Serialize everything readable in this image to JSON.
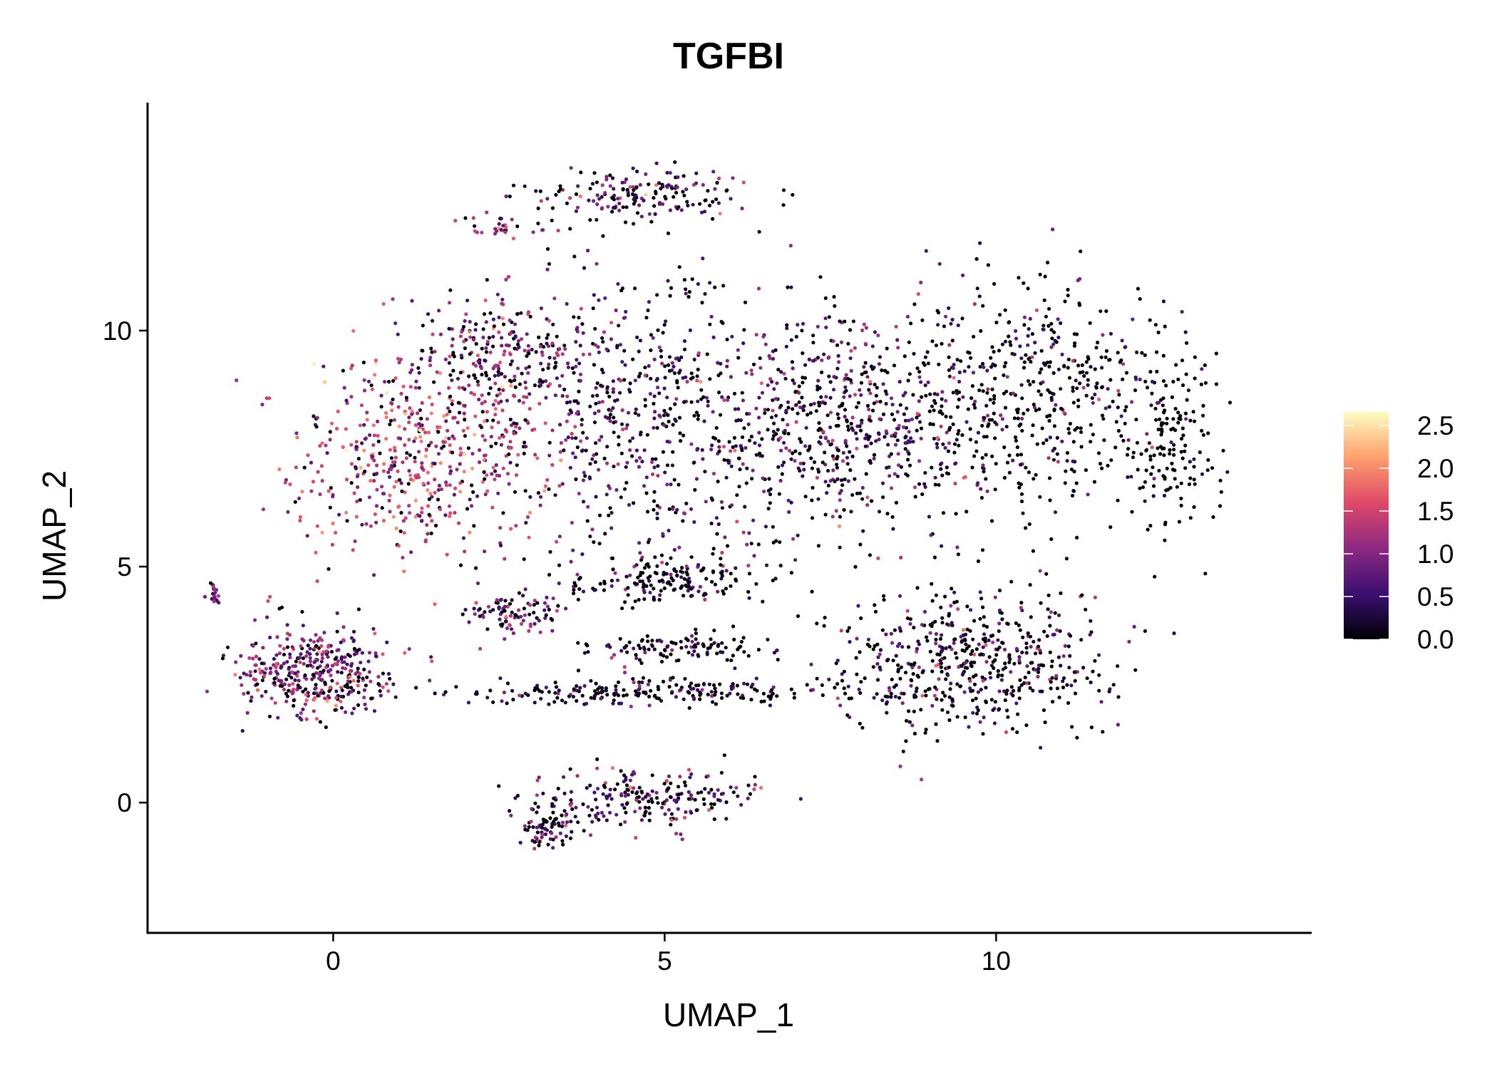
{
  "chart_data": {
    "type": "scatter",
    "title": "TGFBI",
    "xlabel": "UMAP_1",
    "ylabel": "UMAP_2",
    "xlim": [
      -2.8,
      14.76
    ],
    "ylim": [
      -2.76,
      14.83
    ],
    "x_ticks": [
      0,
      5,
      10
    ],
    "y_ticks": [
      0,
      5,
      10
    ],
    "grid": false,
    "legend": {
      "position": "right",
      "title": "",
      "ticks": [
        "0.0",
        "0.5",
        "1.0",
        "1.5",
        "2.0",
        "2.5"
      ],
      "range": [
        0,
        2.66
      ],
      "colormap": [
        "#000004",
        "#3b0f70",
        "#8c2981",
        "#de4968",
        "#fe9f6d",
        "#fcfdbf"
      ]
    },
    "point_clusters": [
      {
        "cx": 1.3,
        "cy": 7.3,
        "sx": 1.2,
        "sy": 1.4,
        "n": 520,
        "zero_frac": 0.15,
        "mean_expr": 1.35
      },
      {
        "cx": 2.5,
        "cy": 9.6,
        "sx": 0.8,
        "sy": 0.8,
        "n": 220,
        "zero_frac": 0.25,
        "mean_expr": 0.9
      },
      {
        "cx": 4.6,
        "cy": 12.9,
        "sx": 1.1,
        "sy": 0.35,
        "n": 170,
        "zero_frac": 0.35,
        "mean_expr": 0.7
      },
      {
        "cx": 2.6,
        "cy": 12.2,
        "sx": 0.4,
        "sy": 0.15,
        "n": 30,
        "zero_frac": 0.1,
        "mean_expr": 1.1
      },
      {
        "cx": 4.6,
        "cy": 8.2,
        "sx": 1.5,
        "sy": 2.0,
        "n": 560,
        "zero_frac": 0.35,
        "mean_expr": 0.65
      },
      {
        "cx": 7.6,
        "cy": 8.0,
        "sx": 1.3,
        "sy": 1.4,
        "n": 560,
        "zero_frac": 0.35,
        "mean_expr": 0.7
      },
      {
        "cx": 10.4,
        "cy": 8.6,
        "sx": 1.4,
        "sy": 1.5,
        "n": 520,
        "zero_frac": 0.6,
        "mean_expr": 0.45
      },
      {
        "cx": 12.6,
        "cy": 7.6,
        "sx": 0.45,
        "sy": 1.1,
        "n": 150,
        "zero_frac": 0.85,
        "mean_expr": 0.3
      },
      {
        "cx": 5.0,
        "cy": 4.7,
        "sx": 0.9,
        "sy": 0.3,
        "n": 160,
        "zero_frac": 0.6,
        "mean_expr": 0.4
      },
      {
        "cx": 9.6,
        "cy": 3.0,
        "sx": 1.3,
        "sy": 1.0,
        "n": 520,
        "zero_frac": 0.55,
        "mean_expr": 0.55
      },
      {
        "cx": -0.3,
        "cy": 2.75,
        "sx": 0.7,
        "sy": 0.6,
        "n": 380,
        "zero_frac": 0.2,
        "mean_expr": 1.0
      },
      {
        "cx": 5.0,
        "cy": 2.35,
        "sx": 1.9,
        "sy": 0.18,
        "n": 230,
        "zero_frac": 0.5,
        "mean_expr": 0.5
      },
      {
        "cx": 5.3,
        "cy": 3.3,
        "sx": 0.8,
        "sy": 0.2,
        "n": 110,
        "zero_frac": 0.5,
        "mean_expr": 0.45
      },
      {
        "cx": 2.7,
        "cy": 4.0,
        "sx": 0.5,
        "sy": 0.3,
        "n": 90,
        "zero_frac": 0.25,
        "mean_expr": 0.8
      },
      {
        "cx": 4.7,
        "cy": 0.1,
        "sx": 1.1,
        "sy": 0.4,
        "n": 220,
        "zero_frac": 0.35,
        "mean_expr": 0.75
      },
      {
        "cx": 3.2,
        "cy": -0.5,
        "sx": 0.25,
        "sy": 0.3,
        "n": 70,
        "zero_frac": 0.3,
        "mean_expr": 0.6
      },
      {
        "cx": -1.8,
        "cy": 4.4,
        "sx": 0.08,
        "sy": 0.15,
        "n": 20,
        "zero_frac": 0.1,
        "mean_expr": 1.0
      }
    ]
  }
}
